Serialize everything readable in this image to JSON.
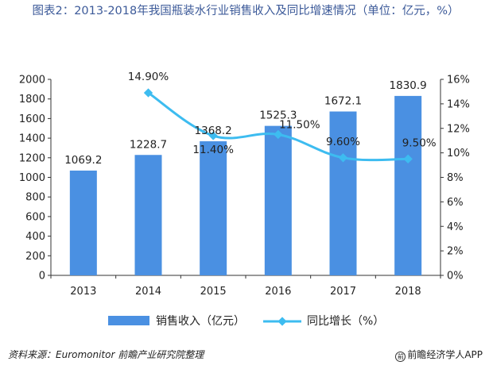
{
  "title": "图表2：2013-2018年我国瓶装水行业销售收入及同比增速情况（单位：亿元，%）",
  "chart_data": {
    "type": "bar",
    "categories": [
      "2013",
      "2014",
      "2015",
      "2016",
      "2017",
      "2018"
    ],
    "series": [
      {
        "name": "销售收入（亿元）",
        "type": "bar",
        "axis": "left",
        "color": "#4a90e2",
        "values": [
          1069.2,
          1228.7,
          1368.2,
          1525.3,
          1672.1,
          1830.9
        ],
        "labels": [
          "1069.2",
          "1228.7",
          "1368.2",
          "1525.3",
          "1672.1",
          "1830.9"
        ]
      },
      {
        "name": "同比增长（%）",
        "type": "line",
        "axis": "right",
        "color": "#3dbcf0",
        "values": [
          null,
          14.9,
          11.4,
          11.5,
          9.6,
          9.5
        ],
        "labels": [
          "",
          "14.90%",
          "11.40%",
          "11.50%",
          "9.60%",
          "9.50%"
        ]
      }
    ],
    "y_left": {
      "min": 0,
      "max": 2000,
      "ticks": [
        "0",
        "200",
        "400",
        "600",
        "800",
        "1000",
        "1200",
        "1400",
        "1600",
        "1800",
        "2000"
      ]
    },
    "y_right": {
      "min": 0,
      "max": 16,
      "ticks": [
        "0%",
        "2%",
        "4%",
        "6%",
        "8%",
        "10%",
        "12%",
        "14%",
        "16%"
      ]
    },
    "grid": false,
    "legend": "bottom"
  },
  "source": "资料来源：Euromonitor  前瞻产业研究院整理",
  "logo": {
    "icon": "qianzhan-logo-icon",
    "text": "前瞻经济学人APP"
  }
}
